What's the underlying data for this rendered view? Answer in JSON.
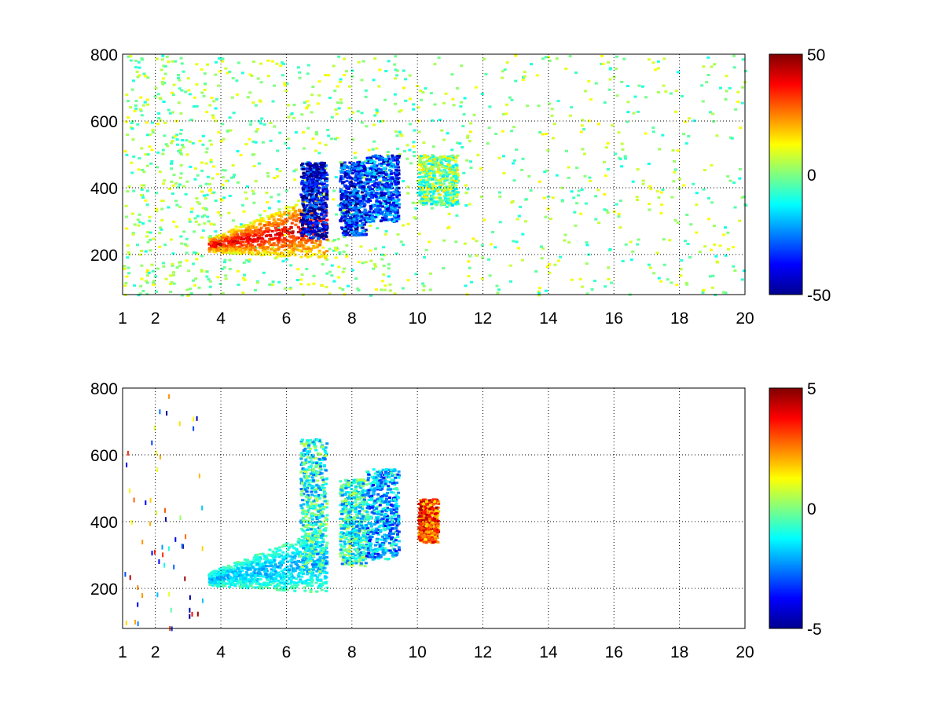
{
  "chart_data": [
    {
      "type": "heatmap",
      "title": "",
      "xlabel": "",
      "ylabel": "",
      "xlim": [
        1,
        20
      ],
      "ylim": [
        80,
        800
      ],
      "xticks": [
        1,
        2,
        4,
        6,
        8,
        10,
        12,
        14,
        16,
        18,
        20
      ],
      "xtick_labels": [
        "1",
        "2",
        "4",
        "6",
        "8",
        "10",
        "12",
        "14",
        "16",
        "18",
        "20"
      ],
      "yticks": [
        200,
        400,
        600,
        800
      ],
      "ytick_labels": [
        "200",
        "400",
        "600",
        "800"
      ],
      "grid": true,
      "colormap": "jet",
      "colorbar": {
        "min": -50,
        "max": 50,
        "ticks": [
          -50,
          0,
          50
        ],
        "tick_labels": [
          "-50",
          "0",
          "50"
        ]
      },
      "features": [
        {
          "x": [
            3.6,
            7.2
          ],
          "y_start": [
            230,
            290
          ],
          "value": 40
        },
        {
          "x": [
            6.4,
            7.2
          ],
          "y": [
            250,
            480
          ],
          "value": -40
        },
        {
          "x": [
            7.6,
            8.4
          ],
          "y": [
            260,
            480
          ],
          "value": -35
        },
        {
          "x": [
            8.4,
            9.4
          ],
          "y": [
            300,
            500
          ],
          "value": -30
        },
        {
          "x": [
            10.0,
            11.2
          ],
          "y": [
            350,
            500
          ],
          "value": 0
        }
      ]
    },
    {
      "type": "heatmap",
      "title": "",
      "xlabel": "",
      "ylabel": "",
      "xlim": [
        1,
        20
      ],
      "ylim": [
        80,
        800
      ],
      "xticks": [
        1,
        2,
        4,
        6,
        8,
        10,
        12,
        14,
        16,
        18,
        20
      ],
      "xtick_labels": [
        "1",
        "2",
        "4",
        "6",
        "8",
        "10",
        "12",
        "14",
        "16",
        "18",
        "20"
      ],
      "yticks": [
        200,
        400,
        600,
        800
      ],
      "ytick_labels": [
        "200",
        "400",
        "600",
        "800"
      ],
      "grid": true,
      "colormap": "jet",
      "colorbar": {
        "min": -5,
        "max": 5,
        "ticks": [
          -5,
          0,
          5
        ],
        "tick_labels": [
          "-5",
          "0",
          "5"
        ]
      },
      "features": [
        {
          "x": [
            3.6,
            7.2
          ],
          "y_start": [
            230,
            290
          ],
          "value": -2
        },
        {
          "x": [
            6.4,
            7.2
          ],
          "y": [
            250,
            650
          ],
          "value": -1
        },
        {
          "x": [
            7.6,
            8.4
          ],
          "y": [
            270,
            530
          ],
          "value": -1
        },
        {
          "x": [
            8.4,
            9.4
          ],
          "y": [
            290,
            560
          ],
          "value": -2
        },
        {
          "x": [
            10.0,
            10.6
          ],
          "y": [
            340,
            470
          ],
          "value": 3
        }
      ]
    }
  ]
}
